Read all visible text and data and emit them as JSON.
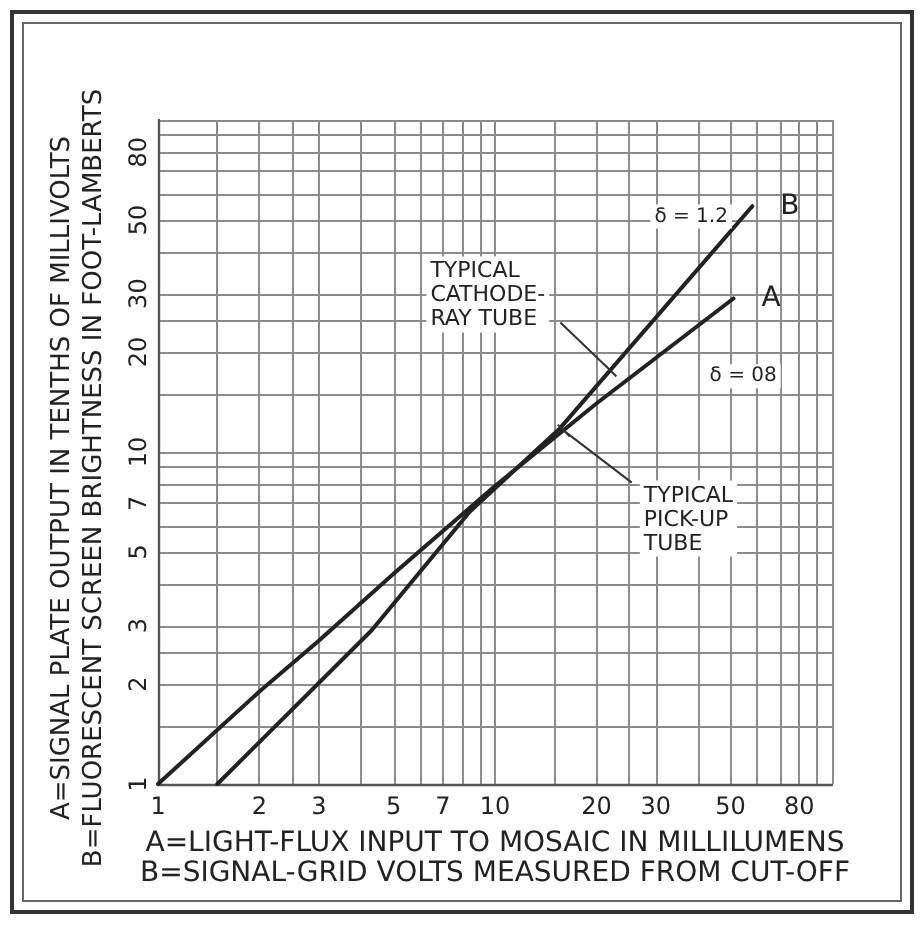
{
  "chart_data": {
    "type": "line",
    "xlabel": "A=LIGHT-FLUX INPUT TO MOSAIC IN MILLILUMENS\nB=SIGNAL-GRID VOLTS MEASURED FROM CUT-OFF",
    "ylabel": "A=SIGNAL PLATE OUTPUT IN TENTHS OF MILLIVOLTS\nB=FLUORESCENT SCREEN BRIGHTNESS IN FOOT-LAMBERTS",
    "series": [
      {
        "name": "A",
        "color": "#222222",
        "x": [
          1,
          2,
          3,
          5,
          10,
          20,
          51
        ],
        "values": [
          1,
          1.9,
          2.7,
          4.3,
          7.9,
          14,
          29
        ]
      },
      {
        "name": "B",
        "color": "#222222",
        "x": [
          1.5,
          4.3,
          8.4,
          15.6,
          58
        ],
        "values": [
          1,
          2.9,
          6.6,
          11.8,
          55
        ]
      }
    ],
    "xlim": [
      1,
      100
    ],
    "ylim": [
      1,
      100
    ],
    "xticks": [
      1,
      {
        "value": 1.5,
        "label": null
      },
      2,
      {
        "value": 2.5,
        "label": null
      },
      3,
      {
        "value": 4,
        "label": null
      },
      5,
      {
        "value": 6,
        "label": null
      },
      7,
      {
        "value": 8,
        "label": null
      },
      {
        "value": 9,
        "label": null
      },
      10,
      {
        "value": 15,
        "label": null
      },
      20,
      {
        "value": 25,
        "label": null
      },
      30,
      {
        "value": 40,
        "label": null
      },
      50,
      {
        "value": 60,
        "label": null
      },
      {
        "value": 70,
        "label": null
      },
      80,
      {
        "value": 90,
        "label": null
      },
      {
        "value": 100,
        "label": null
      }
    ],
    "yticks": [
      1,
      {
        "value": 1.5,
        "label": null
      },
      2,
      {
        "value": 2.5,
        "label": null
      },
      3,
      {
        "value": 4,
        "label": null
      },
      5,
      {
        "value": 6,
        "label": null
      },
      7,
      {
        "value": 8,
        "label": null
      },
      {
        "value": 9,
        "label": null
      },
      10,
      {
        "value": 15,
        "label": null
      },
      20,
      {
        "value": 25,
        "label": null
      },
      30,
      {
        "value": 40,
        "label": null
      },
      50,
      {
        "value": 60,
        "label": null
      },
      {
        "value": 70,
        "label": null
      },
      80,
      {
        "value": 90,
        "label": null
      },
      {
        "value": 100,
        "label": null
      }
    ],
    "log": "xy",
    "grid": true,
    "marker": "none",
    "line_style": "solid",
    "annotations": [
      {
        "text": "δ = 1.2",
        "x": 45,
        "y": 41
      },
      {
        "text": "δ = 08",
        "x": 45,
        "y": 26
      },
      {
        "text": "TYPICAL\nCATHODE-\nRAY TUBE",
        "x": 22,
        "y": 17.6
      },
      {
        "text": "TYPICAL\nPICK-UP\nTUBE",
        "x": 16,
        "y": 11.6
      }
    ]
  }
}
